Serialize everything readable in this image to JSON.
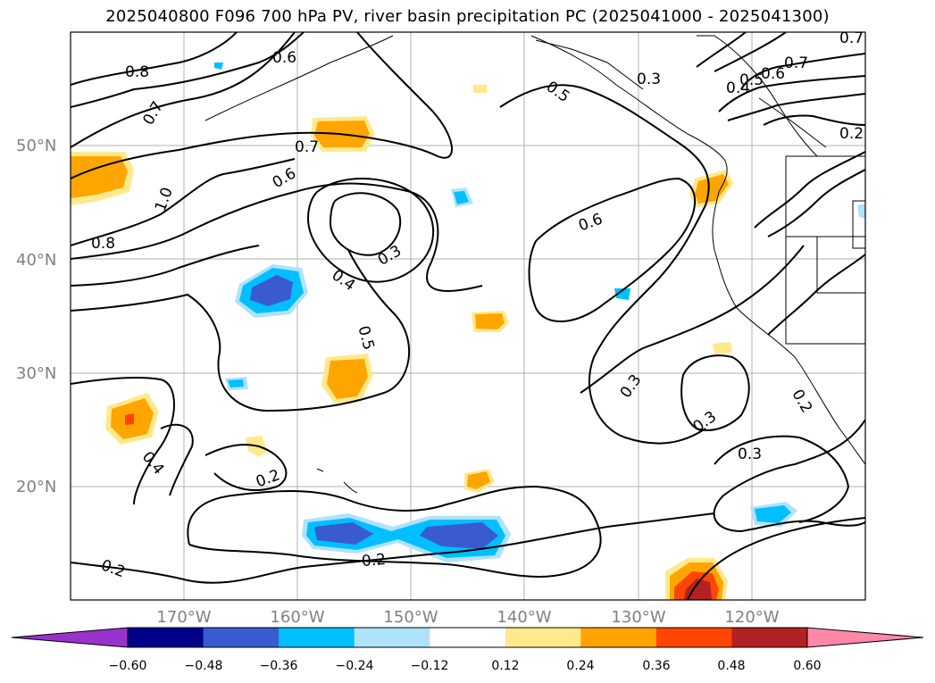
{
  "title": "2025040800 F096 700 hPa PV, river basin precipitation PC (2025041000 - 2025041300)",
  "lat_labels": [
    "50°N",
    "40°N",
    "30°N",
    "20°N"
  ],
  "lon_labels": [
    "170°W",
    "160°W",
    "150°W",
    "140°W",
    "130°W",
    "120°W"
  ],
  "contour_labels": [
    "0.6",
    "0.8",
    "0.7",
    "0.5",
    "0.3",
    "0.7",
    "0.4",
    "0.5",
    "0.6",
    "0.7",
    "0.2",
    "0.7",
    "0.6",
    "1.0",
    "0.8",
    "0.6",
    "0.3",
    "0.4",
    "0.5",
    "0.3",
    "0.3",
    "0.2",
    "0.4",
    "0.2",
    "0.3",
    "0.2",
    "0.2"
  ],
  "colorbar": {
    "ticks": [
      "−0.60",
      "−0.48",
      "−0.36",
      "−0.24",
      "−0.12",
      "0.12",
      "0.24",
      "0.36",
      "0.48",
      "0.60"
    ],
    "colors": [
      "#9932cc",
      "#00008b",
      "#3a5bd0",
      "#00bfff",
      "#afe2fb",
      "#ffffff",
      "#ffe98c",
      "#ffa500",
      "#ff4500",
      "#b22222",
      "#ff88aa"
    ]
  }
}
